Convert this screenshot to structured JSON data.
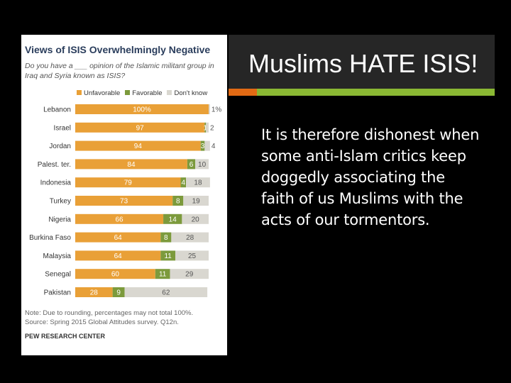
{
  "slide": {
    "title": "Muslims HATE ISIS!",
    "body": "It is therefore dishonest when some anti-Islam critics keep doggedly associating the faith of us Muslims with the acts of our tormentors.",
    "colors": {
      "title_bar": "#262626",
      "accent_orange": "#e26a14",
      "accent_green": "#8ab833",
      "background": "#000000"
    }
  },
  "chart": {
    "title": "Views of ISIS Overwhelmingly Negative",
    "subtitle": "Do you have a ___ opinion of the Islamic militant group in Iraq and Syria known as ISIS?",
    "note": "Note: Due to rounding, percentages may not total 100%.",
    "source": "Source: Spring 2015 Global Attitudes survey. Q12n.",
    "publisher": "PEW RESEARCH CENTER"
  },
  "chart_data": {
    "type": "bar",
    "stacked": true,
    "orientation": "horizontal",
    "categories": [
      "Lebanon",
      "Israel",
      "Jordan",
      "Palest. ter.",
      "Indonesia",
      "Turkey",
      "Nigeria",
      "Burkina Faso",
      "Malaysia",
      "Senegal",
      "Pakistan"
    ],
    "series": [
      {
        "name": "Unfavorable",
        "color": "#e9a037",
        "values": [
          100,
          97,
          94,
          84,
          79,
          73,
          66,
          64,
          64,
          60,
          28
        ]
      },
      {
        "name": "Favorable",
        "color": "#7c9a3c",
        "values": [
          0,
          1,
          3,
          6,
          4,
          8,
          14,
          8,
          11,
          11,
          9
        ]
      },
      {
        "name": "Don't know",
        "color": "#d9d7d0",
        "values": [
          1,
          2,
          4,
          10,
          18,
          19,
          20,
          28,
          25,
          29,
          62
        ]
      }
    ],
    "labels": {
      "Unfavorable": [
        "100%",
        "97",
        "94",
        "84",
        "79",
        "73",
        "66",
        "64",
        "64",
        "60",
        "28"
      ],
      "Favorable": [
        "",
        "1",
        "3",
        "6",
        "4",
        "8",
        "14",
        "8",
        "11",
        "11",
        "9"
      ],
      "Don't know": [
        "1%",
        "2",
        "4",
        "10",
        "18",
        "19",
        "20",
        "28",
        "25",
        "29",
        "62"
      ]
    },
    "xlim": [
      0,
      100
    ],
    "legend": "top"
  }
}
